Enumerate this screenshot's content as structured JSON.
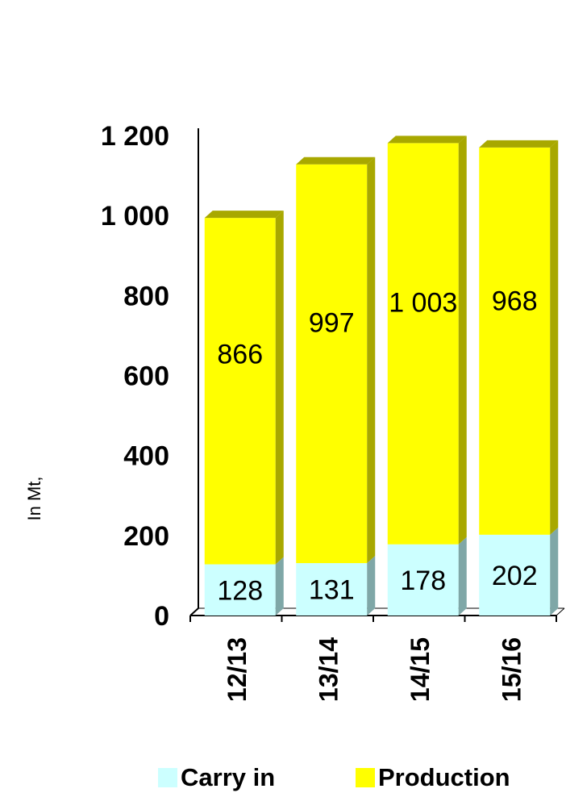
{
  "chart_data": {
    "type": "bar",
    "stacked": true,
    "categories": [
      "12/13",
      "13/14",
      "14/15",
      "15/16"
    ],
    "series": [
      {
        "name": "Carry in",
        "values": [
          128,
          131,
          178,
          202
        ],
        "labels": [
          "128",
          "131",
          "178",
          "202"
        ],
        "color": "#ccffff",
        "side_color": "#7fa7a7"
      },
      {
        "name": "Production",
        "values": [
          866,
          997,
          1003,
          968
        ],
        "labels": [
          "866",
          "997",
          "1 003",
          "968"
        ],
        "color": "#ffff00",
        "side_color": "#a8a800"
      }
    ],
    "ylabel": "In Mt,",
    "ylim": [
      0,
      1200
    ],
    "yticks": [
      0,
      200,
      400,
      600,
      800,
      1000,
      1200
    ],
    "ytick_labels": [
      "0",
      "200",
      "400",
      "600",
      "800",
      "1 000",
      "1 200"
    ],
    "grid": false,
    "legend_position": "bottom"
  }
}
